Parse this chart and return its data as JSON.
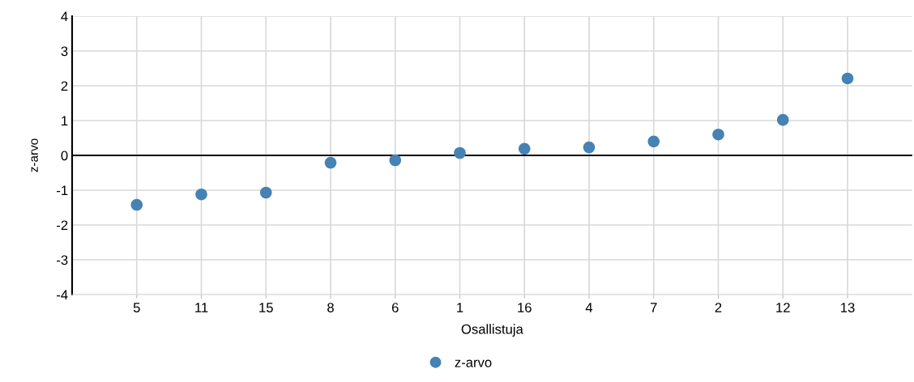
{
  "chart_data": {
    "type": "scatter",
    "xlabel": "Osallistuja",
    "ylabel": "z-arvo",
    "categories": [
      "5",
      "11",
      "15",
      "8",
      "6",
      "1",
      "16",
      "4",
      "7",
      "2",
      "12",
      "13"
    ],
    "series": [
      {
        "name": "z-arvo",
        "color": "#4682b4",
        "values": [
          -1.42,
          -1.12,
          -1.07,
          -0.21,
          -0.14,
          0.07,
          0.19,
          0.23,
          0.4,
          0.6,
          1.02,
          2.21
        ]
      }
    ],
    "ylim": [
      -4,
      4
    ],
    "yticks": [
      -4,
      -3,
      -2,
      -1,
      0,
      1,
      2,
      3,
      4
    ],
    "ref_lines": [
      {
        "axis": "y",
        "value": 0,
        "color": "#000000"
      }
    ],
    "grid": true,
    "legend": "bottom",
    "marker": "circle"
  }
}
